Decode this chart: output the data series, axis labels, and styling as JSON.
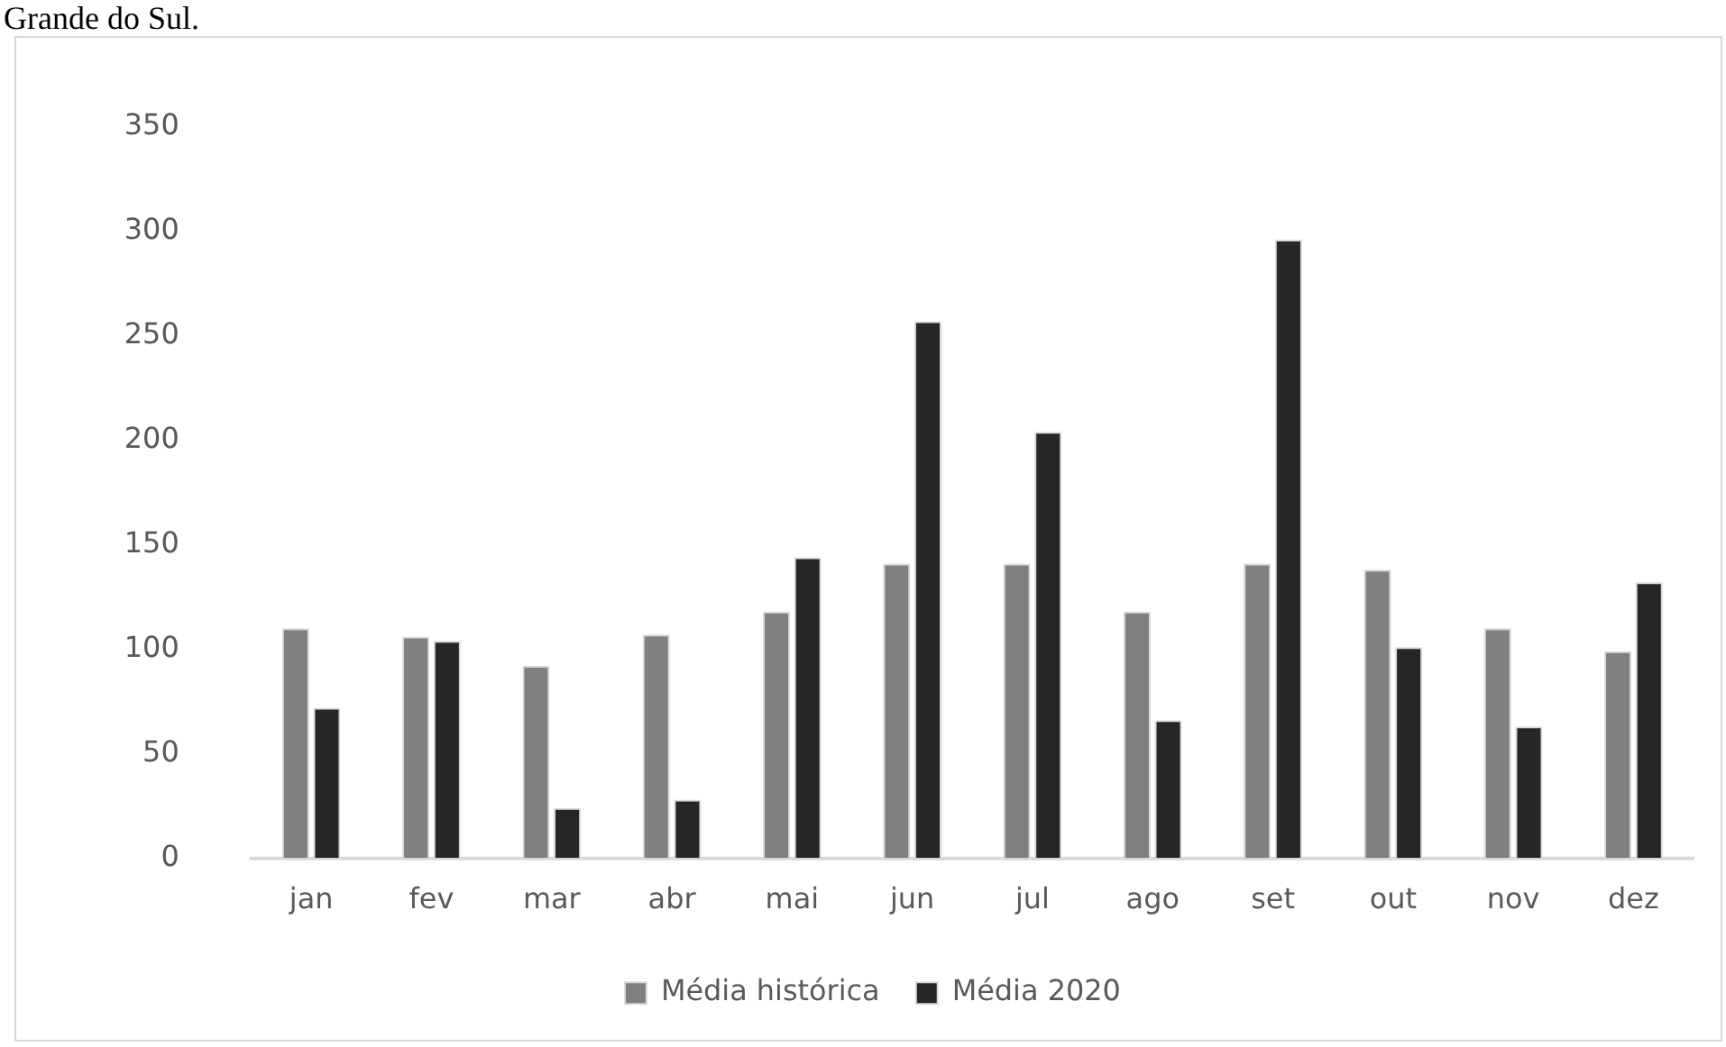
{
  "chart_data": {
    "type": "bar",
    "annotations": [
      "Grande do Sul."
    ],
    "categories": [
      "jan",
      "fev",
      "mar",
      "abr",
      "mai",
      "jun",
      "jul",
      "ago",
      "set",
      "out",
      "nov",
      "dez"
    ],
    "series": [
      {
        "name": "Média histórica",
        "color": "#808080",
        "values": [
          110,
          106,
          92,
          107,
          118,
          141,
          141,
          118,
          141,
          138,
          110,
          99
        ]
      },
      {
        "name": "Média 2020",
        "color": "#262626",
        "values": [
          72,
          104,
          24,
          28,
          144,
          257,
          204,
          66,
          296,
          101,
          63,
          132
        ]
      }
    ],
    "ylim": [
      0,
      350
    ],
    "yticks": [
      0,
      50,
      100,
      150,
      200,
      250,
      300,
      350
    ],
    "grid": false,
    "legend": "bottom"
  }
}
